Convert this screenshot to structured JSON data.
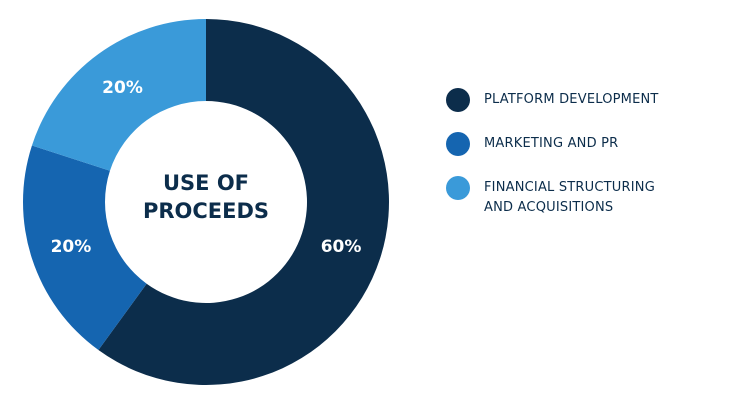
{
  "chart_data": {
    "type": "pie",
    "center_label": [
      "USE OF",
      "PROCEEDS"
    ],
    "slices": [
      {
        "label": "PLATFORM DEVELOPMENT",
        "value": 60,
        "display": "60%",
        "color": "#0c2d4b"
      },
      {
        "label": "MARKETING AND PR",
        "value": 20,
        "display": "20%",
        "color": "#1565b0"
      },
      {
        "label": "FINANCIAL STRUCTURING AND ACQUISITIONS",
        "value": 20,
        "display": "20%",
        "color": "#3a9ad9"
      }
    ],
    "legend_position": "right"
  },
  "legend": [
    {
      "lines": [
        "PLATFORM DEVELOPMENT"
      ],
      "color": "#0c2d4b"
    },
    {
      "lines": [
        "MARKETING AND PR"
      ],
      "color": "#1565b0"
    },
    {
      "lines": [
        "FINANCIAL STRUCTURING",
        "AND ACQUISITIONS"
      ],
      "color": "#3a9ad9"
    }
  ]
}
